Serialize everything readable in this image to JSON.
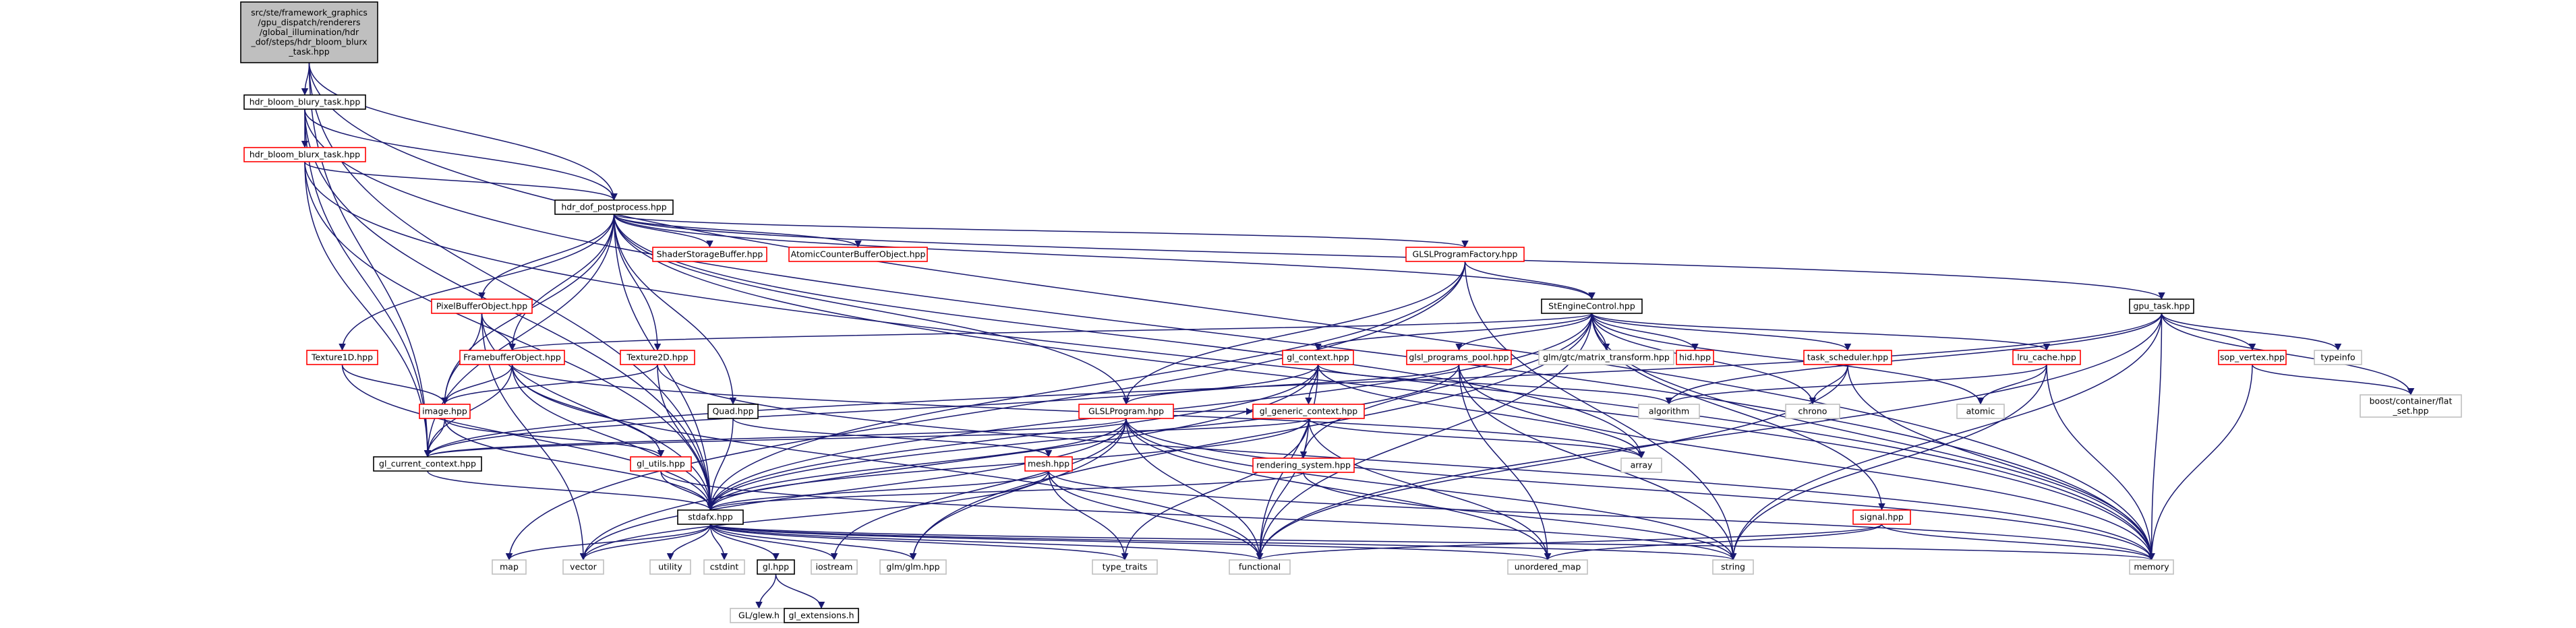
{
  "colors": {
    "edge": "#191970",
    "border_red": "#ff0000",
    "border_black": "#000000",
    "border_gray": "#bfbfbf",
    "root_fill": "#bfbfbf",
    "fill": "#ffffff",
    "text": "#000000"
  },
  "nodes": [
    {
      "id": "root",
      "lines": [
        "src/ste/framework_graphics",
        "/gpu_dispatch/renderers",
        "/global_illumination/hdr",
        "_dof/steps/hdr_bloom_blurx",
        "_task.hpp"
      ],
      "style": "root"
    },
    {
      "id": "bloom_y",
      "lines": [
        "hdr_bloom_blury_task.hpp"
      ],
      "style": "black"
    },
    {
      "id": "bloom_x",
      "lines": [
        "hdr_bloom_blurx_task.hpp"
      ],
      "style": "red"
    },
    {
      "id": "dof_pp",
      "lines": [
        "hdr_dof_postprocess.hpp"
      ],
      "style": "black"
    },
    {
      "id": "ssbo",
      "lines": [
        "ShaderStorageBuffer.hpp"
      ],
      "style": "red"
    },
    {
      "id": "acbo",
      "lines": [
        "AtomicCounterBufferObject.hpp"
      ],
      "style": "red"
    },
    {
      "id": "glslpf",
      "lines": [
        "GLSLProgramFactory.hpp"
      ],
      "style": "red"
    },
    {
      "id": "pbo",
      "lines": [
        "PixelBufferObject.hpp"
      ],
      "style": "red"
    },
    {
      "id": "ste_ctrl",
      "lines": [
        "StEngineControl.hpp"
      ],
      "style": "black"
    },
    {
      "id": "gpu_task",
      "lines": [
        "gpu_task.hpp"
      ],
      "style": "black"
    },
    {
      "id": "tex1d",
      "lines": [
        "Texture1D.hpp"
      ],
      "style": "red"
    },
    {
      "id": "fbo",
      "lines": [
        "FramebufferObject.hpp"
      ],
      "style": "red"
    },
    {
      "id": "tex2d",
      "lines": [
        "Texture2D.hpp"
      ],
      "style": "red"
    },
    {
      "id": "glm_mt",
      "lines": [
        "glm/gtc/matrix_transform.hpp"
      ],
      "style": "gray"
    },
    {
      "id": "hid",
      "lines": [
        "hid.hpp"
      ],
      "style": "red"
    },
    {
      "id": "task_sched",
      "lines": [
        "task_scheduler.hpp"
      ],
      "style": "red"
    },
    {
      "id": "lru",
      "lines": [
        "lru_cache.hpp"
      ],
      "style": "red"
    },
    {
      "id": "sop",
      "lines": [
        "sop_vertex.hpp"
      ],
      "style": "red"
    },
    {
      "id": "typeinfo",
      "lines": [
        "typeinfo"
      ],
      "style": "gray"
    },
    {
      "id": "boost_flat",
      "lines": [
        "boost/container/flat",
        "_set.hpp"
      ],
      "style": "gray"
    },
    {
      "id": "gl_ctx",
      "lines": [
        "gl_context.hpp"
      ],
      "style": "red"
    },
    {
      "id": "glsl_pool",
      "lines": [
        "glsl_programs_pool.hpp"
      ],
      "style": "red"
    },
    {
      "id": "algorithm",
      "lines": [
        "algorithm"
      ],
      "style": "gray"
    },
    {
      "id": "chrono",
      "lines": [
        "chrono"
      ],
      "style": "gray"
    },
    {
      "id": "atomic",
      "lines": [
        "atomic"
      ],
      "style": "gray"
    },
    {
      "id": "quad",
      "lines": [
        "Quad.hpp"
      ],
      "style": "black"
    },
    {
      "id": "image",
      "lines": [
        "image.hpp"
      ],
      "style": "red"
    },
    {
      "id": "glslprog",
      "lines": [
        "GLSLProgram.hpp"
      ],
      "style": "red"
    },
    {
      "id": "gl_generic",
      "lines": [
        "gl_generic_context.hpp"
      ],
      "style": "red"
    },
    {
      "id": "array",
      "lines": [
        "array"
      ],
      "style": "gray"
    },
    {
      "id": "render_sys",
      "lines": [
        "rendering_system.hpp"
      ],
      "style": "red"
    },
    {
      "id": "gl_cur",
      "lines": [
        "gl_current_context.hpp"
      ],
      "style": "black"
    },
    {
      "id": "gl_utils",
      "lines": [
        "gl_utils.hpp"
      ],
      "style": "red"
    },
    {
      "id": "mesh",
      "lines": [
        "mesh.hpp"
      ],
      "style": "red"
    },
    {
      "id": "signal",
      "lines": [
        "signal.hpp"
      ],
      "style": "red"
    },
    {
      "id": "stdafx",
      "lines": [
        "stdafx.hpp"
      ],
      "style": "black"
    },
    {
      "id": "map",
      "lines": [
        "map"
      ],
      "style": "gray"
    },
    {
      "id": "vector",
      "lines": [
        "vector"
      ],
      "style": "gray"
    },
    {
      "id": "utility",
      "lines": [
        "utility"
      ],
      "style": "gray"
    },
    {
      "id": "cstdint",
      "lines": [
        "cstdint"
      ],
      "style": "gray"
    },
    {
      "id": "gl",
      "lines": [
        "gl.hpp"
      ],
      "style": "black"
    },
    {
      "id": "iostream",
      "lines": [
        "iostream"
      ],
      "style": "gray"
    },
    {
      "id": "glm",
      "lines": [
        "glm/glm.hpp"
      ],
      "style": "gray"
    },
    {
      "id": "type_traits",
      "lines": [
        "type_traits"
      ],
      "style": "gray"
    },
    {
      "id": "functional",
      "lines": [
        "functional"
      ],
      "style": "gray"
    },
    {
      "id": "unordered_map",
      "lines": [
        "unordered_map"
      ],
      "style": "gray"
    },
    {
      "id": "string",
      "lines": [
        "string"
      ],
      "style": "gray"
    },
    {
      "id": "memory",
      "lines": [
        "memory"
      ],
      "style": "gray"
    },
    {
      "id": "glew",
      "lines": [
        "GL/glew.h"
      ],
      "style": "gray"
    },
    {
      "id": "gl_ext",
      "lines": [
        "gl_extensions.h"
      ],
      "style": "black"
    }
  ],
  "edges": [
    [
      "root",
      "bloom_y"
    ],
    [
      "root",
      "dof_pp"
    ],
    [
      "root",
      "gl_cur"
    ],
    [
      "root",
      "stdafx"
    ],
    [
      "root",
      "memory"
    ],
    [
      "bloom_y",
      "bloom_x"
    ],
    [
      "bloom_y",
      "dof_pp"
    ],
    [
      "bloom_y",
      "gl_cur"
    ],
    [
      "bloom_y",
      "stdafx"
    ],
    [
      "bloom_y",
      "memory"
    ],
    [
      "bloom_x",
      "dof_pp"
    ],
    [
      "bloom_x",
      "gl_cur"
    ],
    [
      "bloom_x",
      "stdafx"
    ],
    [
      "bloom_x",
      "memory"
    ],
    [
      "dof_pp",
      "ssbo"
    ],
    [
      "dof_pp",
      "acbo"
    ],
    [
      "dof_pp",
      "glslpf"
    ],
    [
      "dof_pp",
      "pbo"
    ],
    [
      "dof_pp",
      "ste_ctrl"
    ],
    [
      "dof_pp",
      "gpu_task"
    ],
    [
      "dof_pp",
      "tex1d"
    ],
    [
      "dof_pp",
      "fbo"
    ],
    [
      "dof_pp",
      "tex2d"
    ],
    [
      "dof_pp",
      "quad"
    ],
    [
      "dof_pp",
      "image"
    ],
    [
      "dof_pp",
      "glslprog"
    ],
    [
      "dof_pp",
      "gl_cur"
    ],
    [
      "dof_pp",
      "stdafx"
    ],
    [
      "dof_pp",
      "memory"
    ],
    [
      "dof_pp",
      "array"
    ],
    [
      "glslpf",
      "ste_ctrl"
    ],
    [
      "glslpf",
      "glslprog"
    ],
    [
      "glslpf",
      "stdafx"
    ],
    [
      "glslpf",
      "string"
    ],
    [
      "glslpf",
      "map"
    ],
    [
      "pbo",
      "image"
    ],
    [
      "pbo",
      "fbo"
    ],
    [
      "pbo",
      "stdafx"
    ],
    [
      "pbo",
      "vector"
    ],
    [
      "ste_ctrl",
      "fbo"
    ],
    [
      "ste_ctrl",
      "glm_mt"
    ],
    [
      "ste_ctrl",
      "hid"
    ],
    [
      "ste_ctrl",
      "task_sched"
    ],
    [
      "ste_ctrl",
      "lru"
    ],
    [
      "ste_ctrl",
      "gl_ctx"
    ],
    [
      "ste_ctrl",
      "glsl_pool"
    ],
    [
      "ste_ctrl",
      "chrono"
    ],
    [
      "ste_ctrl",
      "atomic"
    ],
    [
      "ste_ctrl",
      "signal"
    ],
    [
      "ste_ctrl",
      "stdafx"
    ],
    [
      "ste_ctrl",
      "memory"
    ],
    [
      "ste_ctrl",
      "functional"
    ],
    [
      "ste_ctrl",
      "render_sys"
    ],
    [
      "ste_ctrl",
      "glm"
    ],
    [
      "gpu_task",
      "sop"
    ],
    [
      "gpu_task",
      "typeinfo"
    ],
    [
      "gpu_task",
      "boost_flat"
    ],
    [
      "gpu_task",
      "algorithm"
    ],
    [
      "gpu_task",
      "gl_cur"
    ],
    [
      "gpu_task",
      "memory"
    ],
    [
      "gpu_task",
      "string"
    ],
    [
      "gpu_task",
      "functional"
    ],
    [
      "tex1d",
      "image"
    ],
    [
      "tex1d",
      "stdafx"
    ],
    [
      "fbo",
      "image"
    ],
    [
      "fbo",
      "gl_utils"
    ],
    [
      "fbo",
      "gl_cur"
    ],
    [
      "fbo",
      "stdafx"
    ],
    [
      "fbo",
      "functional"
    ],
    [
      "fbo",
      "array"
    ],
    [
      "tex2d",
      "image"
    ],
    [
      "tex2d",
      "stdafx"
    ],
    [
      "tex2d",
      "memory"
    ],
    [
      "task_sched",
      "chrono"
    ],
    [
      "task_sched",
      "memory"
    ],
    [
      "task_sched",
      "functional"
    ],
    [
      "lru",
      "atomic"
    ],
    [
      "lru",
      "memory"
    ],
    [
      "lru",
      "string"
    ],
    [
      "lru",
      "algorithm"
    ],
    [
      "sop",
      "boost_flat"
    ],
    [
      "sop",
      "memory"
    ],
    [
      "gl_ctx",
      "gl_generic"
    ],
    [
      "gl_ctx",
      "gl_cur"
    ],
    [
      "gl_ctx",
      "stdafx"
    ],
    [
      "gl_ctx",
      "array"
    ],
    [
      "gl_ctx",
      "algorithm"
    ],
    [
      "gl_ctx",
      "functional"
    ],
    [
      "gl_ctx",
      "vector"
    ],
    [
      "glsl_pool",
      "glslprog"
    ],
    [
      "glsl_pool",
      "stdafx"
    ],
    [
      "glsl_pool",
      "string"
    ],
    [
      "glsl_pool",
      "unordered_map"
    ],
    [
      "glsl_pool",
      "memory"
    ],
    [
      "quad",
      "mesh"
    ],
    [
      "quad",
      "stdafx"
    ],
    [
      "image",
      "gl_cur"
    ],
    [
      "image",
      "gl_utils"
    ],
    [
      "image",
      "stdafx"
    ],
    [
      "glslprog",
      "gl_generic"
    ],
    [
      "glslprog",
      "gl_cur"
    ],
    [
      "glslprog",
      "stdafx"
    ],
    [
      "glslprog",
      "glm"
    ],
    [
      "glslprog",
      "iostream"
    ],
    [
      "glslprog",
      "functional"
    ],
    [
      "glslprog",
      "unordered_map"
    ],
    [
      "glslprog",
      "vector"
    ],
    [
      "glslprog",
      "memory"
    ],
    [
      "glslprog",
      "string"
    ],
    [
      "gl_generic",
      "gl_cur"
    ],
    [
      "gl_generic",
      "array"
    ],
    [
      "gl_generic",
      "functional"
    ],
    [
      "gl_generic",
      "type_traits"
    ],
    [
      "gl_generic",
      "unordered_map"
    ],
    [
      "gl_generic",
      "stdafx"
    ],
    [
      "render_sys",
      "stdafx"
    ],
    [
      "render_sys",
      "string"
    ],
    [
      "gl_cur",
      "stdafx"
    ],
    [
      "gl_utils",
      "stdafx"
    ],
    [
      "gl_utils",
      "string"
    ],
    [
      "mesh",
      "stdafx"
    ],
    [
      "mesh",
      "vector"
    ],
    [
      "mesh",
      "functional"
    ],
    [
      "mesh",
      "type_traits"
    ],
    [
      "mesh",
      "memory"
    ],
    [
      "signal",
      "functional"
    ],
    [
      "signal",
      "unordered_map"
    ],
    [
      "signal",
      "memory"
    ],
    [
      "stdafx",
      "map"
    ],
    [
      "stdafx",
      "vector"
    ],
    [
      "stdafx",
      "utility"
    ],
    [
      "stdafx",
      "cstdint"
    ],
    [
      "stdafx",
      "gl"
    ],
    [
      "stdafx",
      "iostream"
    ],
    [
      "stdafx",
      "glm"
    ],
    [
      "stdafx",
      "type_traits"
    ],
    [
      "stdafx",
      "functional"
    ],
    [
      "stdafx",
      "unordered_map"
    ],
    [
      "stdafx",
      "string"
    ],
    [
      "stdafx",
      "memory"
    ],
    [
      "gl",
      "glew"
    ],
    [
      "gl",
      "gl_ext"
    ]
  ]
}
